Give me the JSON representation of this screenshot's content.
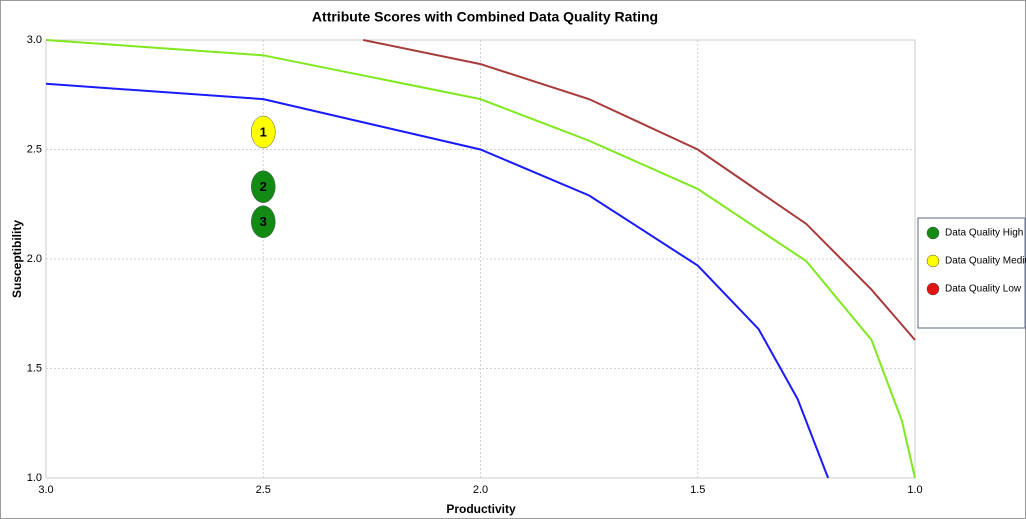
{
  "chart_data": {
    "type": "scatter",
    "title": "Attribute Scores with Combined Data Quality Rating",
    "x_label": "Productivity",
    "y_label": "Susceptibility",
    "xlim": [
      3.0,
      1.0
    ],
    "ylim": [
      1.0,
      3.0
    ],
    "xticks": [
      {
        "value": 3.0,
        "label": "3.0"
      },
      {
        "value": 2.5,
        "label": "2.5"
      },
      {
        "value": 2.0,
        "label": "2.0"
      },
      {
        "value": 1.5,
        "label": "1.5"
      },
      {
        "value": 1.0,
        "label": "1.0"
      }
    ],
    "yticks": [
      {
        "value": 1.0,
        "label": "1.0"
      },
      {
        "value": 1.5,
        "label": "1.5"
      },
      {
        "value": 2.0,
        "label": "2.0"
      },
      {
        "value": 2.5,
        "label": "2.5"
      },
      {
        "value": 3.0,
        "label": "3.0"
      }
    ],
    "grid": true,
    "legend": "right",
    "series": [
      {
        "name": "Data Quality High",
        "color": "#138a13",
        "x": [
          2.5,
          2.5
        ],
        "y": [
          2.33,
          2.17
        ],
        "labels": [
          "2",
          "3"
        ]
      },
      {
        "name": "Data Quality Medium",
        "color": "#ffff00",
        "x": [
          2.5
        ],
        "y": [
          2.58
        ],
        "labels": [
          "1"
        ]
      },
      {
        "name": "Data Quality Low",
        "color": "#e01414",
        "x": [],
        "y": [],
        "labels": []
      }
    ],
    "curves": [
      {
        "color": "#1a1aff",
        "x": [
          3.0,
          2.5,
          2.0,
          1.75,
          1.5,
          1.36,
          1.27,
          1.2
        ],
        "y": [
          2.8,
          2.73,
          2.5,
          2.29,
          1.97,
          1.68,
          1.36,
          1.0
        ]
      },
      {
        "color": "#7fe81f",
        "x": [
          3.0,
          2.5,
          2.0,
          1.75,
          1.5,
          1.25,
          1.1,
          1.03,
          1.0
        ],
        "y": [
          3.0,
          2.93,
          2.73,
          2.54,
          2.32,
          1.99,
          1.63,
          1.26,
          1.0
        ]
      },
      {
        "color": "#a83a3a",
        "x": [
          2.27,
          2.0,
          1.75,
          1.5,
          1.25,
          1.1,
          1.0
        ],
        "y": [
          3.0,
          2.89,
          2.73,
          2.5,
          2.16,
          1.86,
          1.63
        ]
      }
    ]
  }
}
